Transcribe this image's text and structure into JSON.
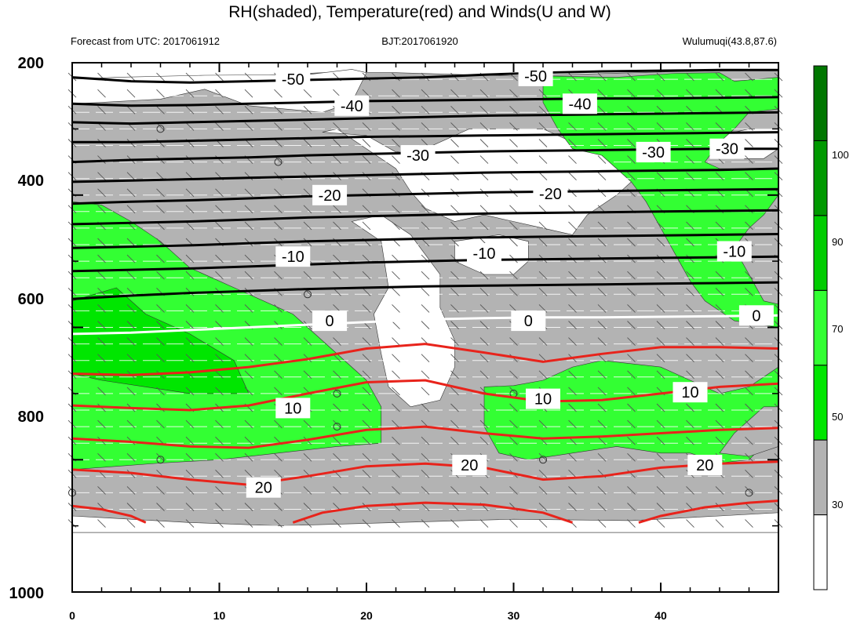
{
  "chart_data": {
    "type": "contour",
    "title": "RH(shaded), Temperature(red) and Winds(U and W)",
    "left_subtitle": "Forecast from UTC: 2017061912",
    "center_subtitle": "BJT:2017061920",
    "right_subtitle": "Wulumuqi(43.8,87.6)",
    "x_ticks": [
      "0",
      "10",
      "20",
      "30",
      "40"
    ],
    "y_ticks": [
      "200",
      "400",
      "600",
      "800",
      "1000"
    ],
    "xlim": [
      0,
      48
    ],
    "ylim": [
      1000,
      200
    ],
    "colorbar": {
      "levels": [
        "30",
        "50",
        "70",
        "90",
        "100"
      ],
      "colors": [
        "#ffffff",
        "#b3b3b3",
        "#00e600",
        "#33ff33",
        "#00cc00",
        "#009900",
        "#007700"
      ]
    },
    "temperature_contours": [
      {
        "value": "-50",
        "color": "#000000",
        "p": [
          222,
          228,
          230,
          228,
          226,
          224,
          222,
          218,
          215,
          213,
          212,
          211,
          211
        ]
      },
      {
        "value": "-40",
        "color": "#000000",
        "p": [
          262,
          265,
          264,
          262,
          260,
          258,
          257,
          256,
          255,
          254,
          254,
          253,
          252
        ]
      },
      {
        "value": "",
        "color": "#000000",
        "p": [
          290,
          292,
          290,
          288,
          286,
          284,
          282,
          280,
          279,
          278,
          277,
          276,
          275
        ]
      },
      {
        "value": "",
        "color": "#000000",
        "p": [
          320,
          320,
          318,
          316,
          314,
          312,
          311,
          310,
          309,
          308,
          307,
          306,
          305
        ]
      },
      {
        "value": "-30",
        "color": "#000000",
        "p": [
          350,
          347,
          345,
          343,
          340,
          338,
          336,
          334,
          333,
          332,
          331,
          330,
          330
        ]
      },
      {
        "value": "",
        "color": "#000000",
        "p": [
          380,
          378,
          376,
          374,
          372,
          370,
          368,
          366,
          365,
          364,
          363,
          362,
          360
        ]
      },
      {
        "value": "-20",
        "color": "#000000",
        "p": [
          413,
          410,
          408,
          405,
          402,
          400,
          398,
          396,
          395,
          394,
          393,
          392,
          391
        ]
      },
      {
        "value": "",
        "color": "#000000",
        "p": [
          444,
          442,
          440,
          437,
          434,
          432,
          430,
          428,
          427,
          426,
          425,
          424,
          423
        ]
      },
      {
        "value": "-10",
        "color": "#000000",
        "p": [
          480,
          478,
          476,
          473,
          470,
          468,
          466,
          464,
          463,
          462,
          461,
          460,
          459
        ]
      },
      {
        "value": "",
        "color": "#000000",
        "p": [
          515,
          513,
          511,
          508,
          505,
          502,
          500,
          498,
          497,
          496,
          495,
          494,
          493
        ]
      },
      {
        "value": "",
        "color": "#000000",
        "p": [
          557,
          552,
          548,
          545,
          542,
          540,
          538,
          537,
          536,
          535,
          534,
          533,
          532
        ]
      },
      {
        "value": "0",
        "color": "#ffffff",
        "p": [
          610,
          608,
          604,
          600,
          596,
          592,
          588,
          586,
          585,
          585,
          584,
          583,
          582
        ]
      },
      {
        "value": "",
        "color": "#e8231b",
        "p": [
          670,
          672,
          668,
          660,
          648,
          632,
          625,
          638,
          652,
          640,
          630,
          630,
          632
        ]
      },
      {
        "value": "10",
        "color": "#e8231b",
        "p": [
          718,
          722,
          725,
          718,
          700,
          683,
          680,
          700,
          712,
          710,
          700,
          690,
          685
        ]
      },
      {
        "value": "",
        "color": "#e8231b",
        "p": [
          768,
          773,
          780,
          782,
          770,
          755,
          750,
          760,
          768,
          765,
          760,
          755,
          752
        ]
      },
      {
        "value": "20",
        "color": "#e8231b",
        "p": [
          815,
          820,
          830,
          838,
          825,
          810,
          806,
          812,
          830,
          825,
          812,
          806,
          803
        ]
      }
    ],
    "contour_labels": [
      "-50",
      "-50",
      "-40",
      "-40",
      "-30",
      "-30",
      "-30",
      "-20",
      "-20",
      "-10",
      "-10",
      "-10",
      "0",
      "0",
      "0",
      "10",
      "10",
      "10",
      "20",
      "20",
      "20"
    ]
  }
}
